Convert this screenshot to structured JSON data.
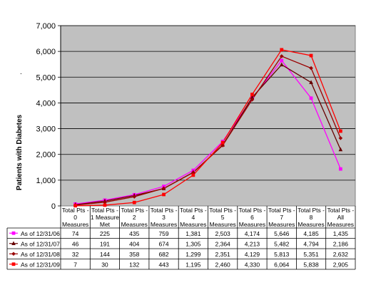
{
  "chart_data": {
    "type": "line",
    "title": "",
    "ylabel": "Patients with Diabetes",
    "xlabel": "",
    "ylim": [
      0,
      7000
    ],
    "y_ticks": [
      "0",
      "1,000",
      "2,000",
      "3,000",
      "4,000",
      "5,000",
      "6,000",
      "7,000"
    ],
    "grid": "horizontal",
    "legend": "data-table-below",
    "stray_mark": ".",
    "categories": [
      [
        "Total Pts -",
        "0",
        "Measures"
      ],
      [
        "Total Pts -",
        "1 Measure",
        "Met"
      ],
      [
        "Total Pts -",
        "2",
        "Measures"
      ],
      [
        "Total Pts -",
        "3",
        "Measures"
      ],
      [
        "Total Pts -",
        "4",
        "Measures"
      ],
      [
        "Total Pts -",
        "5",
        "Measures"
      ],
      [
        "Total Pts -",
        "6",
        "Measures"
      ],
      [
        "Total Pts -",
        "7",
        "Measures"
      ],
      [
        "Total Pts -",
        "8",
        "Measures"
      ],
      [
        "Total Pts -",
        "All",
        "Measures"
      ]
    ],
    "series": [
      {
        "name": "As of 12/31/06",
        "color": "#ff00ff",
        "marker": "square",
        "values": [
          74,
          225,
          435,
          759,
          1381,
          2503,
          4174,
          5646,
          4185,
          1435
        ],
        "labels": [
          "74",
          "225",
          "435",
          "759",
          "1,381",
          "2,503",
          "4,174",
          "5,646",
          "4,185",
          "1,435"
        ]
      },
      {
        "name": "As of 12/31/07",
        "color": "#660000",
        "marker": "triangle",
        "values": [
          46,
          191,
          404,
          674,
          1305,
          2364,
          4213,
          5482,
          4794,
          2186
        ],
        "labels": [
          "46",
          "191",
          "404",
          "674",
          "1,305",
          "2,364",
          "4,213",
          "5,482",
          "4,794",
          "2,186"
        ]
      },
      {
        "name": "As of 12/31/08",
        "color": "#990000",
        "marker": "diamond",
        "values": [
          32,
          144,
          358,
          682,
          1299,
          2351,
          4129,
          5813,
          5351,
          2632
        ],
        "labels": [
          "32",
          "144",
          "358",
          "682",
          "1,299",
          "2,351",
          "4,129",
          "5,813",
          "5,351",
          "2,632"
        ]
      },
      {
        "name": "As of 12/31/09",
        "color": "#ff0000",
        "marker": "square",
        "values": [
          7,
          30,
          132,
          443,
          1195,
          2460,
          4330,
          6064,
          5838,
          2905
        ],
        "labels": [
          "7",
          "30",
          "132",
          "443",
          "1,195",
          "2,460",
          "4,330",
          "6,064",
          "5,838",
          "2,905"
        ]
      }
    ]
  }
}
